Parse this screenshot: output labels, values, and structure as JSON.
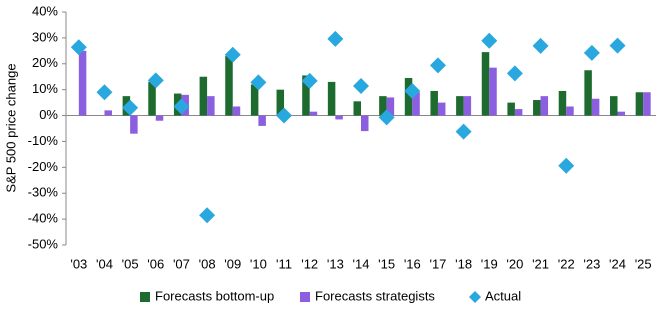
{
  "chart_data": {
    "type": "bar",
    "ylabel": "S&P 500 price change",
    "categories": [
      "'03",
      "'04",
      "'05",
      "'06",
      "'07",
      "'08",
      "'09",
      "'10",
      "'11",
      "'12",
      "'13",
      "'14",
      "'15",
      "'16",
      "'17",
      "'18",
      "'19",
      "'20",
      "'21",
      "'22",
      "'23",
      "'24",
      "'25"
    ],
    "series": [
      {
        "name": "Forecasts bottom-up",
        "type": "bar",
        "color": "#1e6b30",
        "values": [
          null,
          null,
          7.5,
          13,
          8.5,
          15,
          23,
          12,
          10,
          15.5,
          13,
          5.5,
          7.5,
          14.5,
          9.5,
          7.5,
          24.5,
          5,
          6,
          9.5,
          17.5,
          7.5,
          9
        ]
      },
      {
        "name": "Forecasts strategists",
        "type": "bar",
        "color": "#8b5fe0",
        "values": [
          25,
          2,
          -7,
          -2,
          8,
          7.5,
          3.5,
          -4,
          null,
          1.5,
          -1.5,
          -6,
          7,
          9,
          5,
          7.5,
          18.5,
          2.5,
          7.5,
          3.5,
          6.5,
          1.5,
          9
        ]
      },
      {
        "name": "Actual",
        "type": "scatter",
        "color": "#29a8e0",
        "values": [
          26.4,
          9,
          3,
          13.6,
          3.5,
          -38.5,
          23.5,
          12.8,
          0,
          13.4,
          29.6,
          11.4,
          -0.7,
          9.5,
          19.4,
          -6.2,
          28.9,
          16.3,
          26.9,
          -19.4,
          24.2,
          27,
          null
        ]
      }
    ],
    "ylim": [
      -50,
      40
    ],
    "yticks": [
      {
        "value": -50,
        "label": "-50%"
      },
      {
        "value": -40,
        "label": "-40%"
      },
      {
        "value": -30,
        "label": "-30%"
      },
      {
        "value": -20,
        "label": "-20%"
      },
      {
        "value": -10,
        "label": "-10%"
      },
      {
        "value": 0,
        "label": "0%"
      },
      {
        "value": 10,
        "label": "10%"
      },
      {
        "value": 20,
        "label": "20%"
      },
      {
        "value": 30,
        "label": "30%"
      },
      {
        "value": 40,
        "label": "40%"
      }
    ],
    "legend": "bottom"
  }
}
